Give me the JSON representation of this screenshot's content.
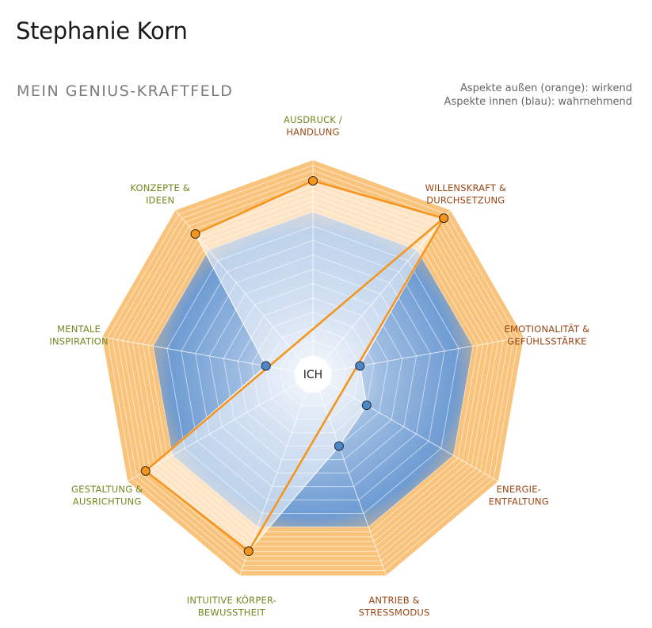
{
  "header": {
    "person_name": "Stephanie Korn",
    "subtitle": "MEIN GENIUS-KRAFTFELD",
    "legend": [
      "Aspekte außen (orange): wirkend",
      "Aspekte innen (blau): wahrnehmend"
    ]
  },
  "colors": {
    "orange": "#f5951e",
    "ring_orange": "#f9c37c",
    "inner_blue": "#6e9cd3",
    "blue_point": "#4f86c6",
    "label_green": "#6f8a1f",
    "label_brown": "#9a4614"
  },
  "chart_data": {
    "type": "radar",
    "title": "MEIN GENIUS-KRAFTFELD",
    "center_label": "ICH",
    "axes": [
      {
        "lines": [
          "AUSDRUCK /",
          "HANDLUNG"
        ],
        "color": "split"
      },
      {
        "lines": [
          "WILLENSKRAFT &",
          "DURCHSETZUNG"
        ],
        "color": "brown"
      },
      {
        "lines": [
          "EMOTIONALITÄT &",
          "GEFÜHLSSTÄRKE"
        ],
        "color": "brown"
      },
      {
        "lines": [
          "ENERGIE-",
          "ENTFALTUNG"
        ],
        "color": "brown"
      },
      {
        "lines": [
          "ANTRIEB &",
          "STRESSMODUS"
        ],
        "color": "brown"
      },
      {
        "lines": [
          "INTUITIVE KÖRPER-",
          "BEWUSSTHEIT"
        ],
        "color": "green"
      },
      {
        "lines": [
          "GESTALTUNG &",
          "AUSRICHTUNG"
        ],
        "color": "green"
      },
      {
        "lines": [
          "MENTALE",
          "INSPIRATION"
        ],
        "color": "green"
      },
      {
        "lines": [
          "KONZEPTE &",
          "IDEEN"
        ],
        "color": "green"
      }
    ],
    "scale": {
      "min": -10,
      "max": 10,
      "inner_levels": 10,
      "outer_levels": 10
    },
    "series": [
      {
        "legend": "Aspekte außen (orange): wirkend",
        "points": [
          {
            "axis": 0,
            "value": 6
          },
          {
            "axis": 1,
            "value": 8
          },
          {
            "axis": 6,
            "value": 6
          },
          {
            "axis": 5,
            "value": 5
          },
          {
            "axis": 8,
            "value": 4
          }
        ]
      },
      {
        "legend": "Aspekte innen (blau): wahrnehmend",
        "points": [
          {
            "axis": 7,
            "value": -8
          },
          {
            "axis": 2,
            "value": -8
          },
          {
            "axis": 3,
            "value": -7
          },
          {
            "axis": 4,
            "value": -6
          }
        ]
      }
    ],
    "path_order": [
      [
        0,
        "outer"
      ],
      [
        1,
        "outer"
      ],
      [
        6,
        "outer"
      ],
      [
        5,
        "outer"
      ],
      [
        1,
        "outer"
      ],
      [
        1,
        "outer"
      ]
    ]
  }
}
